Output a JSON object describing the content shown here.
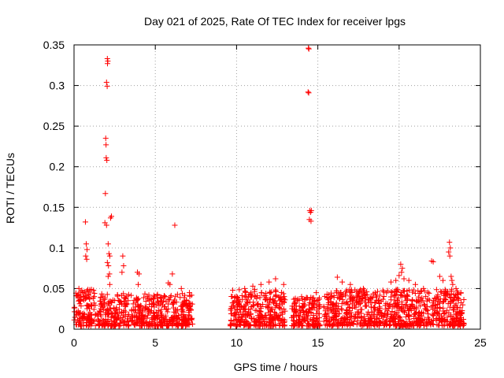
{
  "chart_data": {
    "type": "scatter",
    "title": "Day 021 of 2025, Rate Of TEC Index for receiver lpgs",
    "xlabel": "GPS time / hours",
    "ylabel": "ROTI / TECUs",
    "xlim": [
      0,
      25
    ],
    "ylim": [
      0,
      0.35
    ],
    "grid": true,
    "legend": "none",
    "x_ticks": [
      0,
      5,
      10,
      15,
      20,
      25
    ],
    "y_ticks": [
      0,
      0.05,
      0.1,
      0.15,
      0.2,
      0.25,
      0.3,
      0.35
    ],
    "x_tick_labels": [
      "0",
      "5",
      "10",
      "15",
      "20",
      "25"
    ],
    "y_tick_labels": [
      "0",
      "0.05",
      "0.1",
      "0.15",
      "0.2",
      "0.25",
      "0.3",
      "0.35"
    ],
    "marker": "+",
    "marker_color": "#ff0000",
    "data_segments": [
      {
        "x_start": 0.0,
        "x_end": 1.35,
        "baseline_max": 0.045
      },
      {
        "x_start": 1.45,
        "x_end": 7.3,
        "baseline_max": 0.04
      },
      {
        "x_start": 9.6,
        "x_end": 13.0,
        "baseline_max": 0.045
      },
      {
        "x_start": 13.4,
        "x_end": 15.15,
        "baseline_max": 0.035
      },
      {
        "x_start": 15.35,
        "x_end": 24.0,
        "baseline_max": 0.045
      }
    ],
    "series": [
      {
        "name": "ROTI",
        "points": [
          {
            "x": 0.7,
            "y": 0.132
          },
          {
            "x": 0.75,
            "y": 0.105
          },
          {
            "x": 0.8,
            "y": 0.098
          },
          {
            "x": 0.72,
            "y": 0.09
          },
          {
            "x": 0.78,
            "y": 0.086
          },
          {
            "x": 0.3,
            "y": 0.05
          },
          {
            "x": 1.2,
            "y": 0.048
          },
          {
            "x": 2.05,
            "y": 0.333
          },
          {
            "x": 2.08,
            "y": 0.33
          },
          {
            "x": 2.06,
            "y": 0.327
          },
          {
            "x": 2.0,
            "y": 0.304
          },
          {
            "x": 2.04,
            "y": 0.299
          },
          {
            "x": 1.95,
            "y": 0.235
          },
          {
            "x": 1.97,
            "y": 0.227
          },
          {
            "x": 1.98,
            "y": 0.211
          },
          {
            "x": 2.02,
            "y": 0.208
          },
          {
            "x": 1.93,
            "y": 0.167
          },
          {
            "x": 2.3,
            "y": 0.139
          },
          {
            "x": 2.25,
            "y": 0.137
          },
          {
            "x": 1.9,
            "y": 0.131
          },
          {
            "x": 2.0,
            "y": 0.128
          },
          {
            "x": 2.1,
            "y": 0.105
          },
          {
            "x": 2.15,
            "y": 0.093
          },
          {
            "x": 2.2,
            "y": 0.09
          },
          {
            "x": 2.05,
            "y": 0.082
          },
          {
            "x": 2.12,
            "y": 0.078
          },
          {
            "x": 2.18,
            "y": 0.068
          },
          {
            "x": 2.1,
            "y": 0.065
          },
          {
            "x": 2.2,
            "y": 0.055
          },
          {
            "x": 3.0,
            "y": 0.09
          },
          {
            "x": 3.05,
            "y": 0.078
          },
          {
            "x": 2.95,
            "y": 0.07
          },
          {
            "x": 3.9,
            "y": 0.07
          },
          {
            "x": 4.0,
            "y": 0.068
          },
          {
            "x": 3.95,
            "y": 0.055
          },
          {
            "x": 5.8,
            "y": 0.057
          },
          {
            "x": 5.9,
            "y": 0.055
          },
          {
            "x": 6.05,
            "y": 0.068
          },
          {
            "x": 6.2,
            "y": 0.128
          },
          {
            "x": 6.6,
            "y": 0.05
          },
          {
            "x": 7.1,
            "y": 0.045
          },
          {
            "x": 11.5,
            "y": 0.055
          },
          {
            "x": 12.0,
            "y": 0.058
          },
          {
            "x": 12.4,
            "y": 0.062
          },
          {
            "x": 12.9,
            "y": 0.055
          },
          {
            "x": 10.5,
            "y": 0.05
          },
          {
            "x": 11.0,
            "y": 0.053
          },
          {
            "x": 14.42,
            "y": 0.346
          },
          {
            "x": 14.45,
            "y": 0.345
          },
          {
            "x": 14.4,
            "y": 0.292
          },
          {
            "x": 14.44,
            "y": 0.291
          },
          {
            "x": 14.5,
            "y": 0.146
          },
          {
            "x": 14.6,
            "y": 0.146
          },
          {
            "x": 14.55,
            "y": 0.144
          },
          {
            "x": 14.48,
            "y": 0.135
          },
          {
            "x": 14.58,
            "y": 0.133
          },
          {
            "x": 14.0,
            "y": 0.04
          },
          {
            "x": 14.9,
            "y": 0.045
          },
          {
            "x": 16.2,
            "y": 0.064
          },
          {
            "x": 16.5,
            "y": 0.058
          },
          {
            "x": 17.0,
            "y": 0.055
          },
          {
            "x": 17.8,
            "y": 0.05
          },
          {
            "x": 19.5,
            "y": 0.058
          },
          {
            "x": 19.8,
            "y": 0.06
          },
          {
            "x": 20.1,
            "y": 0.08
          },
          {
            "x": 20.2,
            "y": 0.075
          },
          {
            "x": 20.15,
            "y": 0.07
          },
          {
            "x": 20.0,
            "y": 0.066
          },
          {
            "x": 20.3,
            "y": 0.062
          },
          {
            "x": 20.6,
            "y": 0.06
          },
          {
            "x": 21.0,
            "y": 0.055
          },
          {
            "x": 21.5,
            "y": 0.05
          },
          {
            "x": 22.0,
            "y": 0.084
          },
          {
            "x": 22.1,
            "y": 0.083
          },
          {
            "x": 22.5,
            "y": 0.065
          },
          {
            "x": 22.7,
            "y": 0.06
          },
          {
            "x": 23.1,
            "y": 0.107
          },
          {
            "x": 23.15,
            "y": 0.1
          },
          {
            "x": 23.05,
            "y": 0.095
          },
          {
            "x": 23.12,
            "y": 0.09
          },
          {
            "x": 23.2,
            "y": 0.065
          },
          {
            "x": 23.25,
            "y": 0.06
          },
          {
            "x": 23.3,
            "y": 0.055
          },
          {
            "x": 23.5,
            "y": 0.05
          },
          {
            "x": 23.8,
            "y": 0.045
          }
        ]
      }
    ]
  }
}
